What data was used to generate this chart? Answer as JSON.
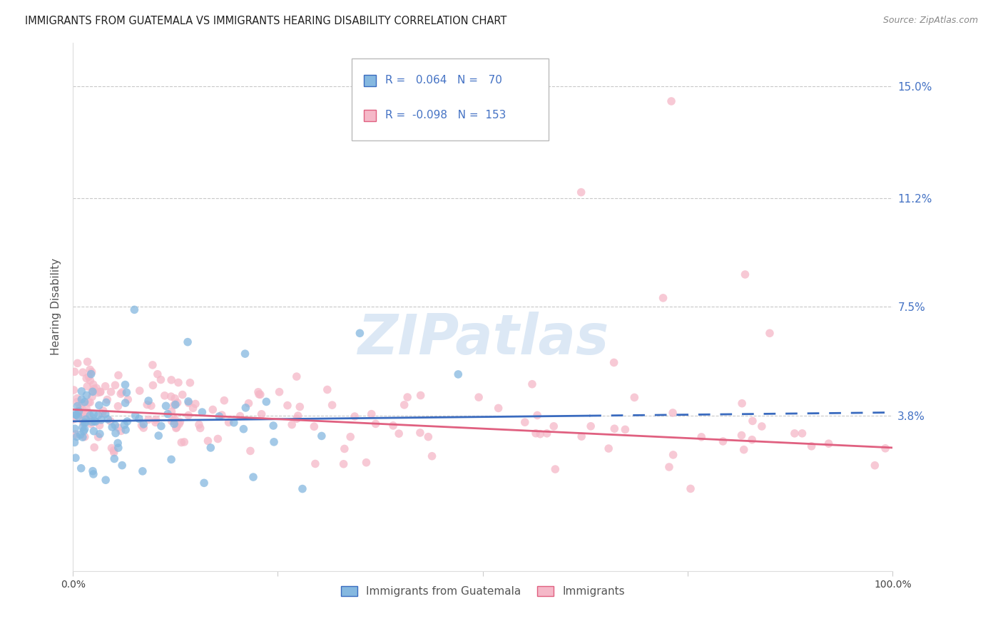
{
  "title": "IMMIGRANTS FROM GUATEMALA VS IMMIGRANTS HEARING DISABILITY CORRELATION CHART",
  "source": "Source: ZipAtlas.com",
  "ylabel": "Hearing Disability",
  "ytick_vals": [
    0.0,
    3.8,
    7.5,
    11.2,
    15.0
  ],
  "ytick_labels": [
    "",
    "3.8%",
    "7.5%",
    "11.2%",
    "15.0%"
  ],
  "legend_blue_R": "0.064",
  "legend_blue_N": "70",
  "legend_pink_R": "-0.098",
  "legend_pink_N": "153",
  "legend_label_blue": "Immigrants from Guatemala",
  "legend_label_pink": "Immigrants",
  "blue_color": "#85b8e0",
  "pink_color": "#f5b8c8",
  "trend_blue_color": "#3a6bbf",
  "trend_pink_color": "#e06080",
  "watermark": "ZIPatlas",
  "watermark_color": "#dce8f5",
  "axis_label_color": "#4472c4",
  "background_color": "#ffffff",
  "xlim": [
    0,
    100
  ],
  "ylim": [
    -1.5,
    16.5
  ],
  "blue_solid_end": 63,
  "blue_trend_start_y": 3.6,
  "blue_trend_slope": 0.003,
  "pink_trend_start_y": 4.0,
  "pink_trend_slope": -0.013
}
